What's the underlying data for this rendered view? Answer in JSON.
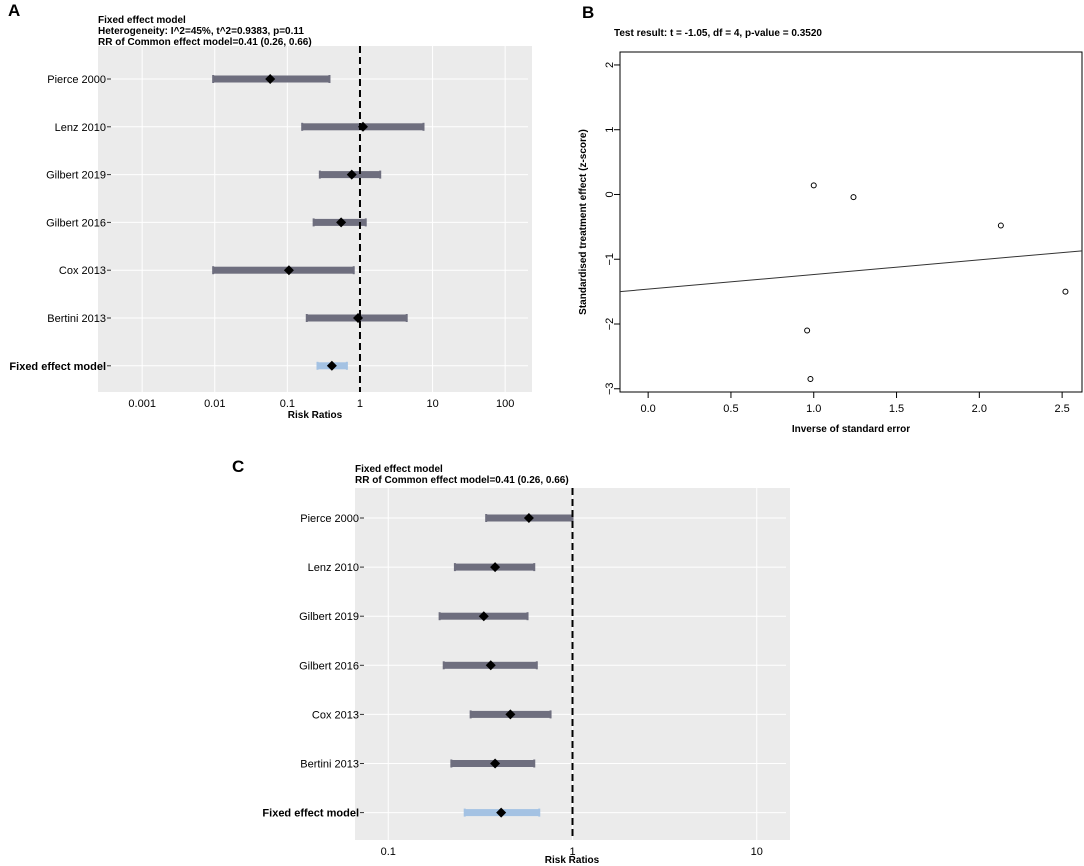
{
  "chart_data": [
    {
      "panel": "A",
      "type": "forest",
      "header": {
        "title": "Fixed effect model",
        "heterogeneity": "Heterogeneity: I^2=45%, t^2=0.9383, p=0.11",
        "summary": "RR of Common effect model=0.41 (0.26, 0.66)"
      },
      "xlabel": "Risk Ratios",
      "xscale": "log",
      "xlim": [
        0.00045,
        160
      ],
      "xticks": [
        0.001,
        0.01,
        0.1,
        1,
        10,
        100
      ],
      "xtick_labels": [
        "0.001",
        "0.01",
        "0.1",
        "1",
        "10",
        "100"
      ],
      "reference_line": 1,
      "studies": [
        {
          "label": "Pierce 2000",
          "estimate": 0.058,
          "lower": 0.0095,
          "upper": 0.38
        },
        {
          "label": "Lenz 2010",
          "estimate": 1.1,
          "lower": 0.16,
          "upper": 7.5
        },
        {
          "label": "Gilbert 2019",
          "estimate": 0.77,
          "lower": 0.28,
          "upper": 1.9
        },
        {
          "label": "Gilbert 2016",
          "estimate": 0.55,
          "lower": 0.23,
          "upper": 1.2
        },
        {
          "label": "Cox 2013",
          "estimate": 0.105,
          "lower": 0.0095,
          "upper": 0.82
        },
        {
          "label": "Bertini 2013",
          "estimate": 0.94,
          "lower": 0.185,
          "upper": 4.4
        }
      ],
      "pooled": {
        "label": "Fixed effect model",
        "estimate": 0.41,
        "lower": 0.26,
        "upper": 0.66
      }
    },
    {
      "panel": "B",
      "type": "scatter",
      "title": "Test result: t = -1.05, df = 4, p-value = 0.3520",
      "xlabel": "Inverse of standard error",
      "ylabel": "Standardised treatment effect (z-score)",
      "xlim": [
        -0.17,
        2.62
      ],
      "ylim": [
        -3.05,
        2.2
      ],
      "xticks": [
        0.0,
        0.5,
        1.0,
        1.5,
        2.0,
        2.5
      ],
      "xtick_labels": [
        "0.0",
        "0.5",
        "1.0",
        "1.5",
        "2.0",
        "2.5"
      ],
      "yticks": [
        -3,
        -2,
        -1,
        0,
        1,
        2
      ],
      "ytick_labels": [
        "−3",
        "−2",
        "−1",
        "0",
        "1",
        "2"
      ],
      "points": [
        {
          "x": 1.0,
          "y": 0.14
        },
        {
          "x": 1.24,
          "y": -0.04
        },
        {
          "x": 2.13,
          "y": -0.48
        },
        {
          "x": 2.52,
          "y": -1.5
        },
        {
          "x": 0.96,
          "y": -2.1
        },
        {
          "x": 0.98,
          "y": -2.85
        }
      ],
      "regression_line": {
        "x": [
          -0.17,
          2.62
        ],
        "y": [
          -1.5,
          -0.87
        ]
      }
    },
    {
      "panel": "C",
      "type": "forest",
      "header": {
        "title": "Fixed effect model",
        "summary": "RR of Common effect model=0.41 (0.26, 0.66)"
      },
      "xlabel": "Risk Ratios",
      "xscale": "log",
      "xlim": [
        0.0796,
        13.04
      ],
      "xticks": [
        0.1,
        1,
        10
      ],
      "xtick_labels": [
        "0.1",
        "1",
        "10"
      ],
      "reference_line": 1,
      "studies": [
        {
          "label": "Pierce 2000",
          "estimate": 0.58,
          "lower": 0.34,
          "upper": 1.0
        },
        {
          "label": "Lenz 2010",
          "estimate": 0.38,
          "lower": 0.23,
          "upper": 0.62
        },
        {
          "label": "Gilbert 2019",
          "estimate": 0.33,
          "lower": 0.19,
          "upper": 0.57
        },
        {
          "label": "Gilbert 2016",
          "estimate": 0.36,
          "lower": 0.2,
          "upper": 0.64
        },
        {
          "label": "Cox 2013",
          "estimate": 0.46,
          "lower": 0.28,
          "upper": 0.76
        },
        {
          "label": "Bertini 2013",
          "estimate": 0.38,
          "lower": 0.22,
          "upper": 0.62
        }
      ],
      "pooled": {
        "label": "Fixed effect model",
        "estimate": 0.41,
        "lower": 0.26,
        "upper": 0.66
      }
    }
  ],
  "colors": {
    "panel_bg": "#ebebeb",
    "grid": "#ffffff",
    "study_bar": "#6e6e7e",
    "pooled_bar": "#a4c2e3",
    "marker": "#000000"
  }
}
